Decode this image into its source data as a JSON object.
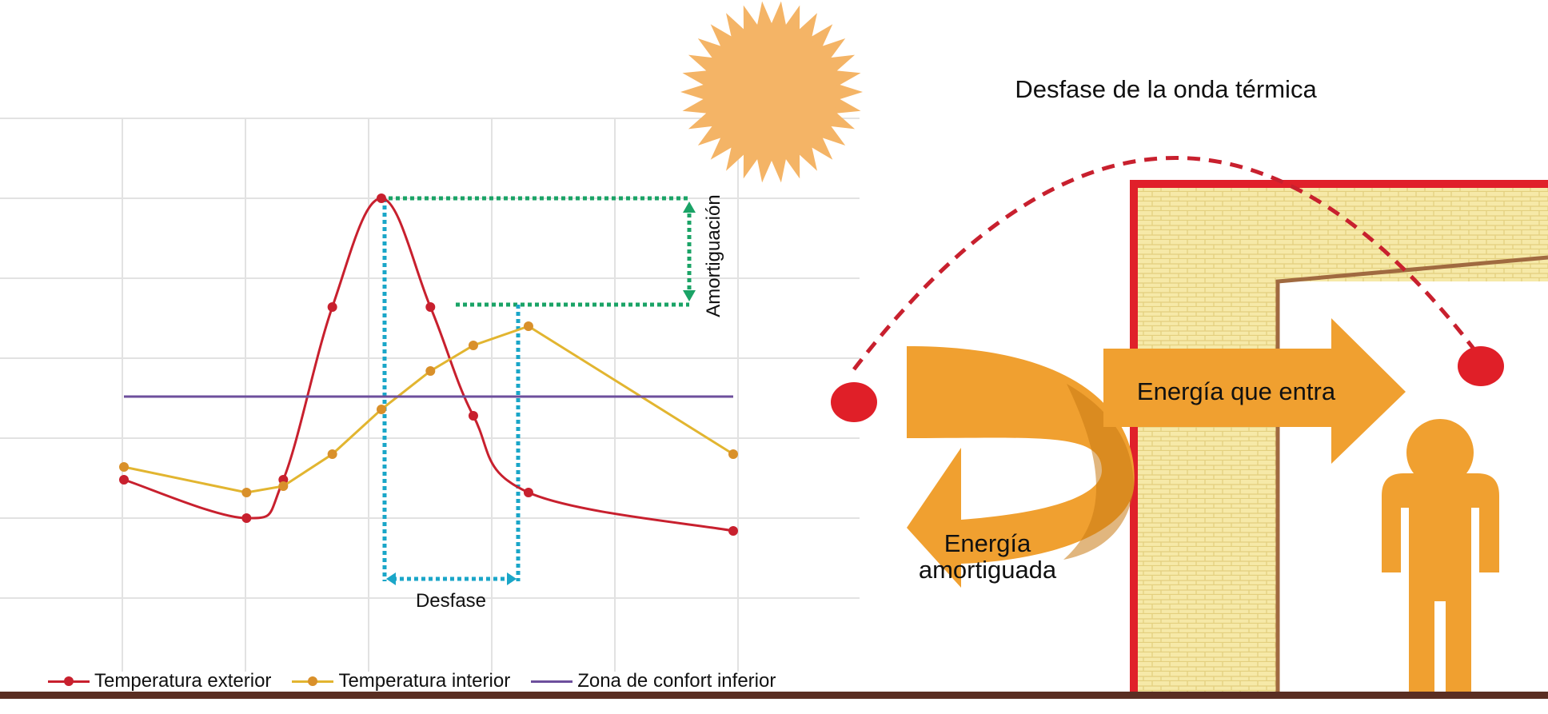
{
  "title": "Desfase de la onda térmica",
  "labels": {
    "energy_in": "Energía que entra",
    "energy_damped_line1": "Energía",
    "energy_damped_line2": "amortiguada",
    "amortiguacion": "Amortiguación",
    "desfase": "Desfase"
  },
  "colors": {
    "exterior": "#c8202e",
    "interior": "#e2b530",
    "interior_dot": "#d9902a",
    "confort": "#6d4f9c",
    "amort_guide": "#1aa366",
    "desfase_guide": "#1aa6c8",
    "arrow": "#f0a030",
    "arrow_dark": "#c87a14",
    "sun": "#f4b466",
    "wall_fill": "#f6e9a8",
    "wall_border": "#e0202a",
    "person": "#f0a030",
    "ground": "#5a2e22"
  },
  "icons": [
    "sun-icon",
    "person-icon",
    "heat-arc-icon"
  ],
  "legend": [
    {
      "label": "Temperatura exterior",
      "key": "exterior"
    },
    {
      "label": "Temperatura interior",
      "key": "interior"
    },
    {
      "label": "Zona de confort inferior",
      "key": "confort"
    }
  ],
  "chart_data": {
    "type": "line",
    "title": "",
    "xlabel": "",
    "ylabel": "",
    "xlim": [
      0,
      10
    ],
    "ylim": [
      0,
      10
    ],
    "grid": true,
    "legend_position": "bottom",
    "series": [
      {
        "name": "Temperatura exterior",
        "color_key": "exterior",
        "points": [
          [
            1.0,
            2.6
          ],
          [
            2.0,
            2.0
          ],
          [
            2.3,
            2.6
          ],
          [
            2.7,
            5.3
          ],
          [
            3.1,
            7.0
          ],
          [
            3.5,
            5.3
          ],
          [
            3.85,
            3.6
          ],
          [
            4.3,
            2.4
          ],
          [
            5.97,
            1.8
          ]
        ]
      },
      {
        "name": "Temperatura interior",
        "color_key": "interior",
        "points": [
          [
            1.0,
            2.8
          ],
          [
            2.0,
            2.4
          ],
          [
            2.3,
            2.5
          ],
          [
            2.7,
            3.0
          ],
          [
            3.1,
            3.7
          ],
          [
            3.5,
            4.3
          ],
          [
            3.85,
            4.7
          ],
          [
            4.3,
            5.0
          ],
          [
            5.97,
            3.0
          ]
        ]
      },
      {
        "name": "Zona de confort inferior",
        "color_key": "confort",
        "points": [
          [
            1.0,
            3.9
          ],
          [
            5.97,
            3.9
          ]
        ]
      }
    ],
    "annotations": [
      {
        "text": "Amortiguación",
        "from": [
          3.1,
          7.0
        ],
        "to": [
          4.3,
          5.0
        ]
      },
      {
        "text": "Desfase",
        "from": [
          3.1,
          7.0
        ],
        "to": [
          4.3,
          5.0
        ]
      }
    ]
  }
}
